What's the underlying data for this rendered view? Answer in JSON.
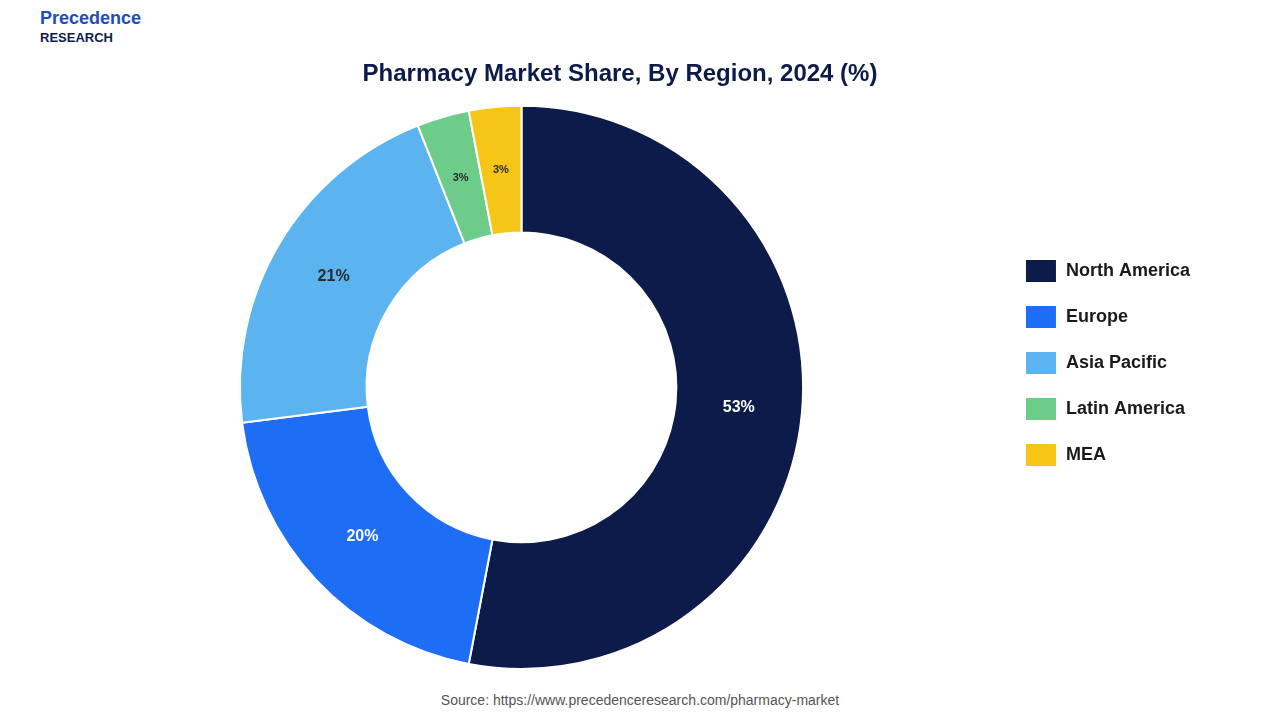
{
  "chart_data": {
    "type": "doughnut",
    "title": "Pharmacy Market Share, By Region, 2024 (%)",
    "categories": [
      "North America",
      "Europe",
      "Asia Pacific",
      "Latin America",
      "MEA"
    ],
    "values": [
      53,
      20,
      21,
      3,
      3
    ],
    "value_labels": [
      "53%",
      "20%",
      "21%",
      "3%",
      "3%"
    ],
    "colors": [
      "#0d1b4b",
      "#1e6ef5",
      "#5bb3f0",
      "#6dcc8a",
      "#f5c518"
    ],
    "data_labels": true,
    "legend": "right",
    "annotations": [
      "Precedence",
      "RESEARCH",
      "Source: https://www.precedenceresearch.com/pharmacy-market"
    ]
  }
}
